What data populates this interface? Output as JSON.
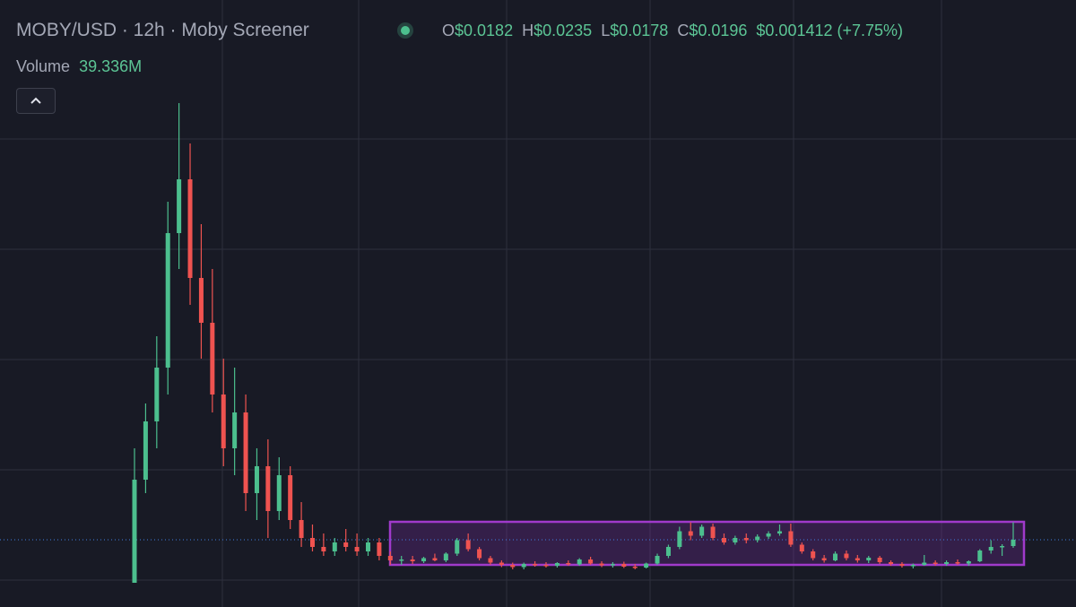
{
  "chart_data": {
    "type": "candlestick",
    "title": "MOBY/USD · 12h · Moby Screener",
    "ohlc_legend": [
      {
        "label": "O",
        "value": "$0.0182"
      },
      {
        "label": "H",
        "value": "$0.0235"
      },
      {
        "label": "L",
        "value": "$0.0178"
      },
      {
        "label": "C",
        "value": "$0.0196"
      }
    ],
    "change": "$0.001412 (+7.75%)",
    "volume_label": "Volume",
    "volume_value": "39.336M",
    "up_color": "#4cbf8e",
    "down_color": "#ef5350",
    "ylim": [
      0.0046,
      0.14
    ],
    "open": [
      0.01,
      0.033,
      0.046,
      0.058,
      0.088,
      0.1,
      0.078,
      0.068,
      0.052,
      0.04,
      0.048,
      0.03,
      0.036,
      0.026,
      0.034,
      0.024,
      0.02,
      0.018,
      0.017,
      0.019,
      0.018,
      0.017,
      0.019,
      0.016,
      0.015,
      0.0152,
      0.0148,
      0.0155,
      0.015,
      0.0165,
      0.0195,
      0.0175,
      0.0155,
      0.0145,
      0.014,
      0.0135,
      0.0142,
      0.014,
      0.0138,
      0.0144,
      0.0141,
      0.0152,
      0.0143,
      0.0139,
      0.0142,
      0.0136,
      0.0134,
      0.0143,
      0.016,
      0.018,
      0.0215,
      0.0205,
      0.0225,
      0.02,
      0.019,
      0.02,
      0.0195,
      0.0203,
      0.021,
      0.0215,
      0.0185,
      0.017,
      0.0155,
      0.015,
      0.0165,
      0.0155,
      0.015,
      0.0156,
      0.0146,
      0.0142,
      0.0138,
      0.014,
      0.0145,
      0.0142,
      0.0146,
      0.0143,
      0.0148,
      0.0172,
      0.018,
      0.0182
    ],
    "high": [
      0.04,
      0.05,
      0.065,
      0.095,
      0.117,
      0.108,
      0.09,
      0.08,
      0.06,
      0.058,
      0.052,
      0.04,
      0.042,
      0.038,
      0.036,
      0.028,
      0.023,
      0.021,
      0.02,
      0.022,
      0.021,
      0.02,
      0.02,
      0.017,
      0.016,
      0.016,
      0.0158,
      0.0165,
      0.0168,
      0.02,
      0.021,
      0.018,
      0.016,
      0.015,
      0.0145,
      0.0145,
      0.0148,
      0.0146,
      0.0146,
      0.015,
      0.0155,
      0.0158,
      0.0148,
      0.0146,
      0.0147,
      0.0142,
      0.0145,
      0.0165,
      0.0185,
      0.0225,
      0.0235,
      0.023,
      0.0232,
      0.021,
      0.0205,
      0.021,
      0.0208,
      0.0215,
      0.023,
      0.0232,
      0.019,
      0.0175,
      0.0162,
      0.017,
      0.0172,
      0.0162,
      0.016,
      0.016,
      0.015,
      0.0146,
      0.0143,
      0.0162,
      0.015,
      0.015,
      0.0152,
      0.015,
      0.0175,
      0.0195,
      0.0186,
      0.0235
    ],
    "low": [
      0.01,
      0.03,
      0.04,
      0.052,
      0.08,
      0.072,
      0.06,
      0.048,
      0.036,
      0.034,
      0.026,
      0.024,
      0.02,
      0.024,
      0.022,
      0.018,
      0.017,
      0.016,
      0.016,
      0.017,
      0.016,
      0.016,
      0.015,
      0.014,
      0.014,
      0.0142,
      0.0144,
      0.0148,
      0.0146,
      0.016,
      0.017,
      0.015,
      0.014,
      0.0135,
      0.013,
      0.013,
      0.0136,
      0.0134,
      0.0134,
      0.0138,
      0.0138,
      0.014,
      0.0135,
      0.0134,
      0.0133,
      0.013,
      0.0132,
      0.014,
      0.0155,
      0.0175,
      0.0195,
      0.02,
      0.0195,
      0.0185,
      0.0185,
      0.0188,
      0.019,
      0.0198,
      0.0205,
      0.018,
      0.0165,
      0.015,
      0.0145,
      0.0148,
      0.015,
      0.0145,
      0.0144,
      0.0142,
      0.0138,
      0.0134,
      0.0132,
      0.0138,
      0.0138,
      0.0138,
      0.014,
      0.0138,
      0.0146,
      0.0165,
      0.016,
      0.0178
    ],
    "close": [
      0.033,
      0.046,
      0.058,
      0.088,
      0.1,
      0.078,
      0.068,
      0.052,
      0.04,
      0.048,
      0.03,
      0.036,
      0.026,
      0.034,
      0.024,
      0.02,
      0.018,
      0.017,
      0.019,
      0.018,
      0.017,
      0.019,
      0.016,
      0.015,
      0.0152,
      0.0148,
      0.0155,
      0.015,
      0.0165,
      0.0195,
      0.0175,
      0.0155,
      0.0145,
      0.014,
      0.0135,
      0.0142,
      0.014,
      0.0138,
      0.0144,
      0.0141,
      0.0152,
      0.0143,
      0.0139,
      0.0142,
      0.0136,
      0.0134,
      0.0143,
      0.016,
      0.018,
      0.0215,
      0.0205,
      0.0225,
      0.02,
      0.019,
      0.02,
      0.0195,
      0.0203,
      0.021,
      0.0215,
      0.0185,
      0.017,
      0.0155,
      0.015,
      0.0165,
      0.0155,
      0.015,
      0.0156,
      0.0146,
      0.0142,
      0.0138,
      0.014,
      0.0145,
      0.0142,
      0.0146,
      0.0143,
      0.0148,
      0.0172,
      0.018,
      0.0182,
      0.0196
    ]
  }
}
